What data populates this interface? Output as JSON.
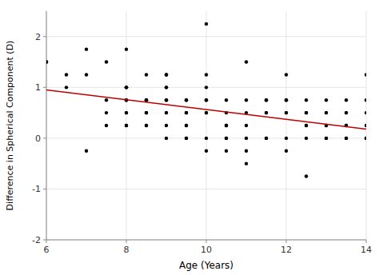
{
  "chart_data": {
    "type": "scatter",
    "xlabel": "Age (Years)",
    "ylabel": "Difference in Spherical Component (D)",
    "xlim": [
      6,
      14
    ],
    "ylim": [
      -2,
      2.5
    ],
    "xticks": [
      6,
      8,
      10,
      12,
      14
    ],
    "yticks": [
      -2,
      -1,
      0,
      1,
      2
    ],
    "series": [
      {
        "type": "scatter",
        "color": "#000000",
        "marker": "circle",
        "x": [
          6.0,
          6.0,
          6.5,
          6.5,
          7.0,
          7.0,
          7.0,
          7.5,
          7.5,
          7.5,
          7.5,
          8.0,
          8.0,
          8.0,
          8.0,
          8.0,
          8.0,
          8.0,
          8.0,
          8.0,
          8.0,
          8.5,
          8.5,
          8.5,
          8.5,
          8.5,
          8.5,
          8.5,
          8.5,
          8.5,
          9.0,
          9.0,
          9.0,
          9.0,
          9.0,
          9.0,
          9.0,
          9.0,
          9.0,
          9.0,
          9.5,
          9.5,
          9.5,
          9.5,
          9.5,
          9.5,
          9.5,
          9.5,
          9.5,
          10.0,
          10.0,
          10.0,
          10.0,
          10.0,
          10.0,
          10.0,
          10.0,
          10.0,
          10.5,
          10.5,
          10.5,
          10.5,
          10.5,
          10.5,
          10.5,
          10.5,
          11.0,
          11.0,
          11.0,
          11.0,
          11.0,
          11.0,
          11.0,
          11.5,
          11.5,
          11.5,
          11.5,
          11.5,
          11.5,
          12.0,
          12.0,
          12.0,
          12.0,
          12.0,
          12.0,
          12.0,
          12.5,
          12.5,
          12.5,
          12.5,
          12.5,
          12.5,
          12.5,
          12.5,
          13.0,
          13.0,
          13.0,
          13.0,
          13.0,
          13.0,
          13.0,
          13.5,
          13.5,
          13.5,
          13.5,
          13.5,
          13.5,
          13.5,
          14.0,
          14.0,
          14.0,
          14.0,
          14.0,
          14.0,
          14.0
        ],
        "values": [
          1.5,
          1.5,
          1.25,
          1.0,
          1.75,
          1.25,
          -0.25,
          1.5,
          0.5,
          0.25,
          0.75,
          1.0,
          1.0,
          1.0,
          0.75,
          0.75,
          0.5,
          0.5,
          0.25,
          0.25,
          1.75,
          0.75,
          0.75,
          0.75,
          0.5,
          0.5,
          0.25,
          0.25,
          0.5,
          1.25,
          0.75,
          0.75,
          1.0,
          1.0,
          0.5,
          0.5,
          0.0,
          0.25,
          1.25,
          1.25,
          0.75,
          0.75,
          0.5,
          0.5,
          0.5,
          0.25,
          0.25,
          0.0,
          0.0,
          1.25,
          1.0,
          0.75,
          0.75,
          0.5,
          0.5,
          0.0,
          2.25,
          -0.25,
          0.75,
          0.5,
          0.25,
          0.25,
          0.25,
          0.0,
          0.0,
          -0.25,
          0.75,
          0.5,
          0.25,
          0.0,
          -0.25,
          1.5,
          -0.5,
          0.75,
          0.75,
          0.5,
          0.5,
          0.0,
          0.0,
          1.25,
          0.75,
          0.75,
          0.5,
          0.5,
          0.0,
          -0.25,
          0.75,
          0.5,
          0.5,
          0.5,
          0.25,
          0.25,
          0.0,
          -0.75,
          0.75,
          0.5,
          0.5,
          0.25,
          0.25,
          0.0,
          0.0,
          0.75,
          0.5,
          0.5,
          0.25,
          0.25,
          0.0,
          0.0,
          1.25,
          0.75,
          0.5,
          0.25,
          0.0,
          0.0,
          0.0
        ]
      },
      {
        "type": "line",
        "color": "#bb0000",
        "line_style": "solid",
        "x": [
          6,
          14
        ],
        "values": [
          0.95,
          0.18
        ]
      }
    ]
  }
}
